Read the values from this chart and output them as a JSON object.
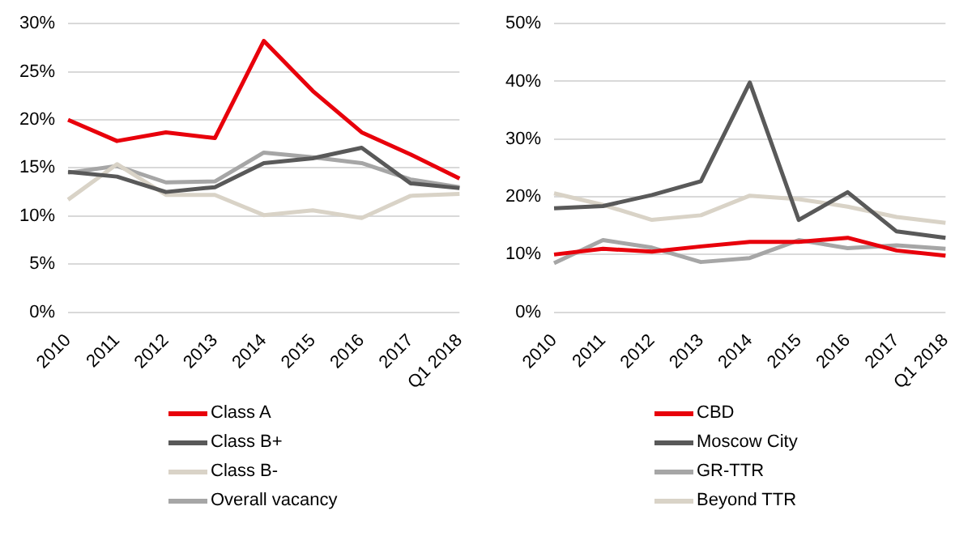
{
  "chart_data": [
    {
      "type": "line",
      "categories": [
        "2010",
        "2011",
        "2012",
        "2013",
        "2014",
        "2015",
        "2016",
        "2017",
        "Q1 2018"
      ],
      "series": [
        {
          "name": "Class A",
          "color": "#e8000b",
          "values": [
            20,
            17.8,
            18.7,
            18.1,
            28.2,
            23,
            18.7,
            16.4,
            13.9
          ]
        },
        {
          "name": "Class B+",
          "color": "#595959",
          "values": [
            14.6,
            14.1,
            12.5,
            13,
            15.5,
            16,
            17.1,
            13.4,
            12.9
          ]
        },
        {
          "name": "Class B-",
          "color": "#d9d3c7",
          "values": [
            11.7,
            15.4,
            12.2,
            12.2,
            10.1,
            10.6,
            9.8,
            12.1,
            12.3
          ]
        },
        {
          "name": "Overall vacancy",
          "color": "#a6a6a6",
          "values": [
            14.5,
            15.2,
            13.5,
            13.6,
            16.6,
            16.1,
            15.5,
            13.8,
            13
          ]
        }
      ],
      "ylim": [
        0,
        30
      ],
      "yticks": [
        {
          "value": 0,
          "label": "0%"
        },
        {
          "value": 5,
          "label": "5%"
        },
        {
          "value": 10,
          "label": "10%"
        },
        {
          "value": 15,
          "label": "15%"
        },
        {
          "value": 20,
          "label": "20%"
        },
        {
          "value": 25,
          "label": "25%"
        },
        {
          "value": 30,
          "label": "30%"
        }
      ],
      "grid": "y",
      "legend": "bottom",
      "marker": "none",
      "line_style": "solid"
    },
    {
      "type": "line",
      "categories": [
        "2010",
        "2011",
        "2012",
        "2013",
        "2014",
        "2015",
        "2016",
        "2017",
        "Q1 2018"
      ],
      "series": [
        {
          "name": "CBD",
          "color": "#e8000b",
          "values": [
            10,
            11,
            10.5,
            11.4,
            12.2,
            12.2,
            12.9,
            10.7,
            9.8
          ]
        },
        {
          "name": "Moscow City",
          "color": "#595959",
          "values": [
            18,
            18.4,
            20.3,
            22.7,
            39.8,
            16,
            20.8,
            14,
            12.9
          ]
        },
        {
          "name": "GR-TTR",
          "color": "#a6a6a6",
          "values": [
            8.5,
            12.5,
            11.2,
            8.7,
            9.4,
            12.5,
            11.1,
            11.6,
            11
          ]
        },
        {
          "name": "Beyond TTR",
          "color": "#d9d3c7",
          "values": [
            20.6,
            18.6,
            16,
            16.8,
            20.2,
            19.6,
            18.3,
            16.5,
            15.5
          ]
        }
      ],
      "ylim": [
        0,
        50
      ],
      "yticks": [
        {
          "value": 0,
          "label": "0%"
        },
        {
          "value": 10,
          "label": "10%"
        },
        {
          "value": 20,
          "label": "20%"
        },
        {
          "value": 30,
          "label": "30%"
        },
        {
          "value": 40,
          "label": "40%"
        },
        {
          "value": 50,
          "label": "50%"
        }
      ],
      "grid": "y",
      "legend": "bottom",
      "marker": "none",
      "line_style": "solid"
    }
  ]
}
